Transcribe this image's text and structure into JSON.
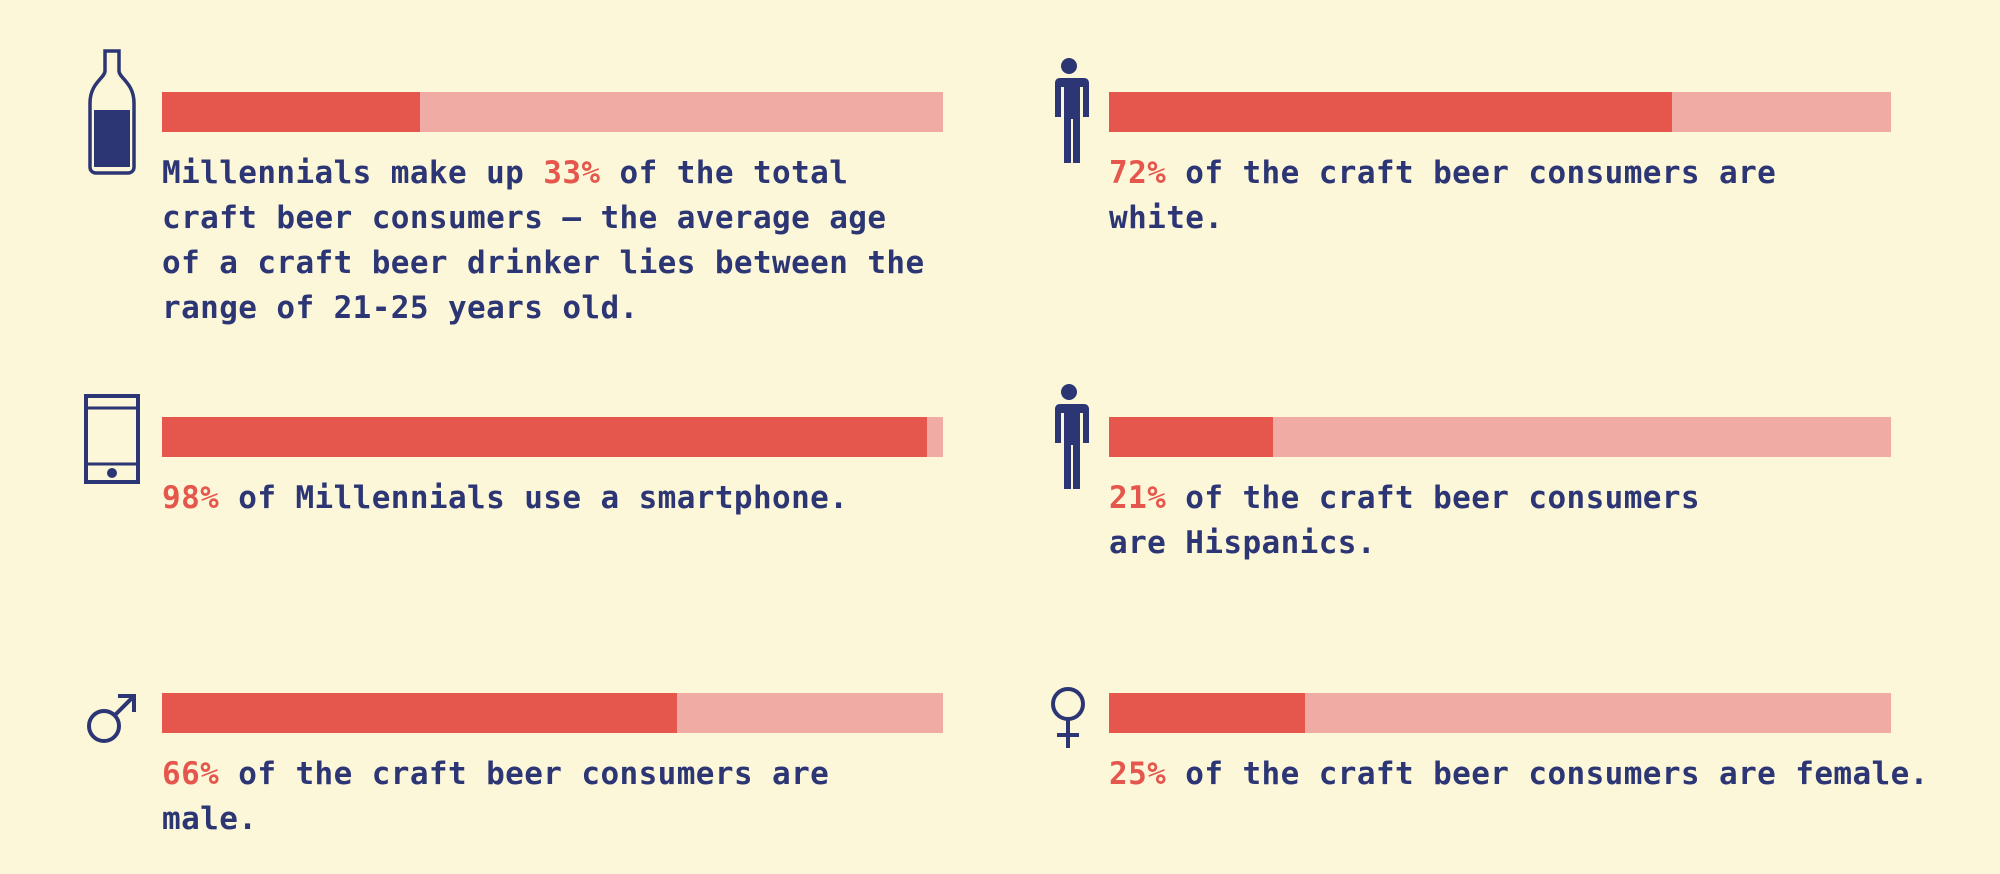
{
  "colors": {
    "background": "#fdf7d9",
    "bar_fill": "#e5574d",
    "bar_track": "#f0aca4",
    "text": "#2c3674",
    "highlight": "#e5574d",
    "icon": "#2c3674"
  },
  "stats": [
    {
      "id": "millennials",
      "icon": "beer-bottle-icon",
      "value": 33,
      "percent_label": "",
      "text_before": "Millennials make up ",
      "highlight": "33%",
      "text_after": " of the total craft beer consumers – the average age of a craft beer drinker lies between the range of 21-25 years old."
    },
    {
      "id": "white",
      "icon": "person-icon",
      "value": 72,
      "text_before": "",
      "highlight": "72%",
      "text_after": " of the craft beer consumers are white."
    },
    {
      "id": "smartphone",
      "icon": "smartphone-icon",
      "value": 98,
      "text_before": "",
      "highlight": "98%",
      "text_after": " of Millennials use a smartphone."
    },
    {
      "id": "hispanics",
      "icon": "person-icon",
      "value": 21,
      "text_before": "",
      "highlight": "21%",
      "text_after": " of the craft beer consumers are Hispanics."
    },
    {
      "id": "male",
      "icon": "male-symbol-icon",
      "value": 66,
      "text_before": "",
      "highlight": "66%",
      "text_after": " of the craft beer consumers are male."
    },
    {
      "id": "female",
      "icon": "female-symbol-icon",
      "value": 25,
      "text_before": "",
      "highlight": "25%",
      "text_after": " of the craft beer consumers are female."
    }
  ]
}
